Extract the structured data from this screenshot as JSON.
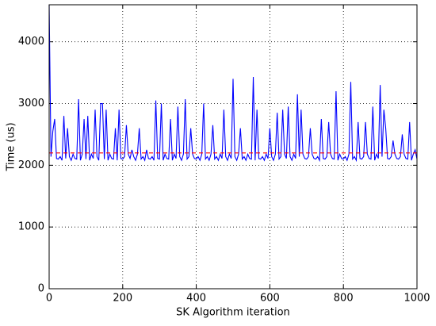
{
  "chart_data": {
    "type": "line",
    "xlabel": "SK Algorithm iteration",
    "ylabel": "Time (us)",
    "xlim": [
      0,
      1000
    ],
    "xticks": [
      0,
      200,
      400,
      600,
      800,
      1000
    ],
    "ylim": [
      0,
      4600
    ],
    "yticks": [
      0,
      1000,
      2000,
      3000,
      4000
    ],
    "grid": true,
    "series": [
      {
        "color": "#0000ff",
        "x": [
          0,
          5,
          10,
          15,
          20,
          25,
          30,
          35,
          40,
          45,
          50,
          55,
          60,
          65,
          70,
          75,
          80,
          85,
          90,
          95,
          100,
          105,
          110,
          115,
          120,
          125,
          130,
          135,
          140,
          145,
          150,
          155,
          160,
          165,
          170,
          175,
          180,
          185,
          190,
          195,
          200,
          205,
          210,
          215,
          220,
          225,
          230,
          235,
          240,
          245,
          250,
          255,
          260,
          265,
          270,
          275,
          280,
          285,
          290,
          295,
          300,
          305,
          310,
          315,
          320,
          325,
          330,
          335,
          340,
          345,
          350,
          355,
          360,
          365,
          370,
          375,
          380,
          385,
          390,
          395,
          400,
          405,
          410,
          415,
          420,
          425,
          430,
          435,
          440,
          445,
          450,
          455,
          460,
          465,
          470,
          475,
          480,
          485,
          490,
          495,
          500,
          505,
          510,
          515,
          520,
          525,
          530,
          535,
          540,
          545,
          550,
          555,
          560,
          565,
          570,
          575,
          580,
          585,
          590,
          595,
          600,
          605,
          610,
          615,
          620,
          625,
          630,
          635,
          640,
          645,
          650,
          655,
          660,
          665,
          670,
          675,
          680,
          685,
          690,
          695,
          700,
          705,
          710,
          715,
          720,
          725,
          730,
          735,
          740,
          745,
          750,
          755,
          760,
          765,
          770,
          775,
          780,
          785,
          790,
          795,
          800,
          805,
          810,
          815,
          820,
          825,
          830,
          835,
          840,
          845,
          850,
          855,
          860,
          865,
          870,
          875,
          880,
          885,
          890,
          895,
          900,
          905,
          910,
          915,
          920,
          925,
          930,
          935,
          940,
          945,
          950,
          955,
          960,
          965,
          970,
          975,
          980,
          985,
          990,
          995,
          1000
        ],
        "values": [
          4600,
          2140,
          2550,
          2750,
          2110,
          2100,
          2140,
          2080,
          2800,
          2110,
          2600,
          2140,
          2080,
          2180,
          2110,
          2100,
          3070,
          2080,
          2180,
          2750,
          2100,
          2800,
          2080,
          2180,
          2110,
          2900,
          2140,
          2080,
          3000,
          3000,
          2100,
          2900,
          2080,
          2180,
          2110,
          2100,
          2600,
          2080,
          2900,
          2110,
          2100,
          2140,
          2650,
          2180,
          2110,
          2250,
          2140,
          2080,
          2180,
          2600,
          2100,
          2140,
          2080,
          2250,
          2110,
          2100,
          2140,
          2080,
          3050,
          2110,
          2100,
          3000,
          2080,
          2180,
          2110,
          2100,
          2750,
          2080,
          2180,
          2110,
          2950,
          2140,
          2080,
          2180,
          3070,
          2100,
          2140,
          2600,
          2180,
          2110,
          2100,
          2140,
          2080,
          2180,
          3000,
          2100,
          2140,
          2080,
          2180,
          2650,
          2100,
          2140,
          2080,
          2180,
          2110,
          2900,
          2140,
          2080,
          2180,
          2110,
          3400,
          2140,
          2080,
          2180,
          2600,
          2100,
          2140,
          2080,
          2180,
          2110,
          2100,
          3430,
          2080,
          2900,
          2110,
          2100,
          2140,
          2080,
          2180,
          2110,
          2600,
          2140,
          2080,
          2180,
          2850,
          2100,
          2140,
          2900,
          2180,
          2110,
          2950,
          2140,
          2080,
          2180,
          2110,
          3150,
          2140,
          2900,
          2180,
          2110,
          2100,
          2140,
          2600,
          2180,
          2110,
          2100,
          2140,
          2080,
          2750,
          2110,
          2100,
          2140,
          2700,
          2180,
          2110,
          2100,
          3200,
          2080,
          2180,
          2110,
          2100,
          2140,
          2080,
          2180,
          3350,
          2100,
          2140,
          2080,
          2700,
          2110,
          2100,
          2140,
          2700,
          2180,
          2110,
          2100,
          2950,
          2080,
          2180,
          2110,
          3300,
          2140,
          2900,
          2600,
          2110,
          2100,
          2140,
          2400,
          2180,
          2110,
          2100,
          2140,
          2500,
          2180,
          2110,
          2100,
          2700,
          2080,
          2180,
          2250,
          2100
        ]
      },
      {
        "color": "#ff0000",
        "dashed": true,
        "x": [
          0,
          1000
        ],
        "values": [
          2200,
          2200
        ]
      }
    ]
  }
}
